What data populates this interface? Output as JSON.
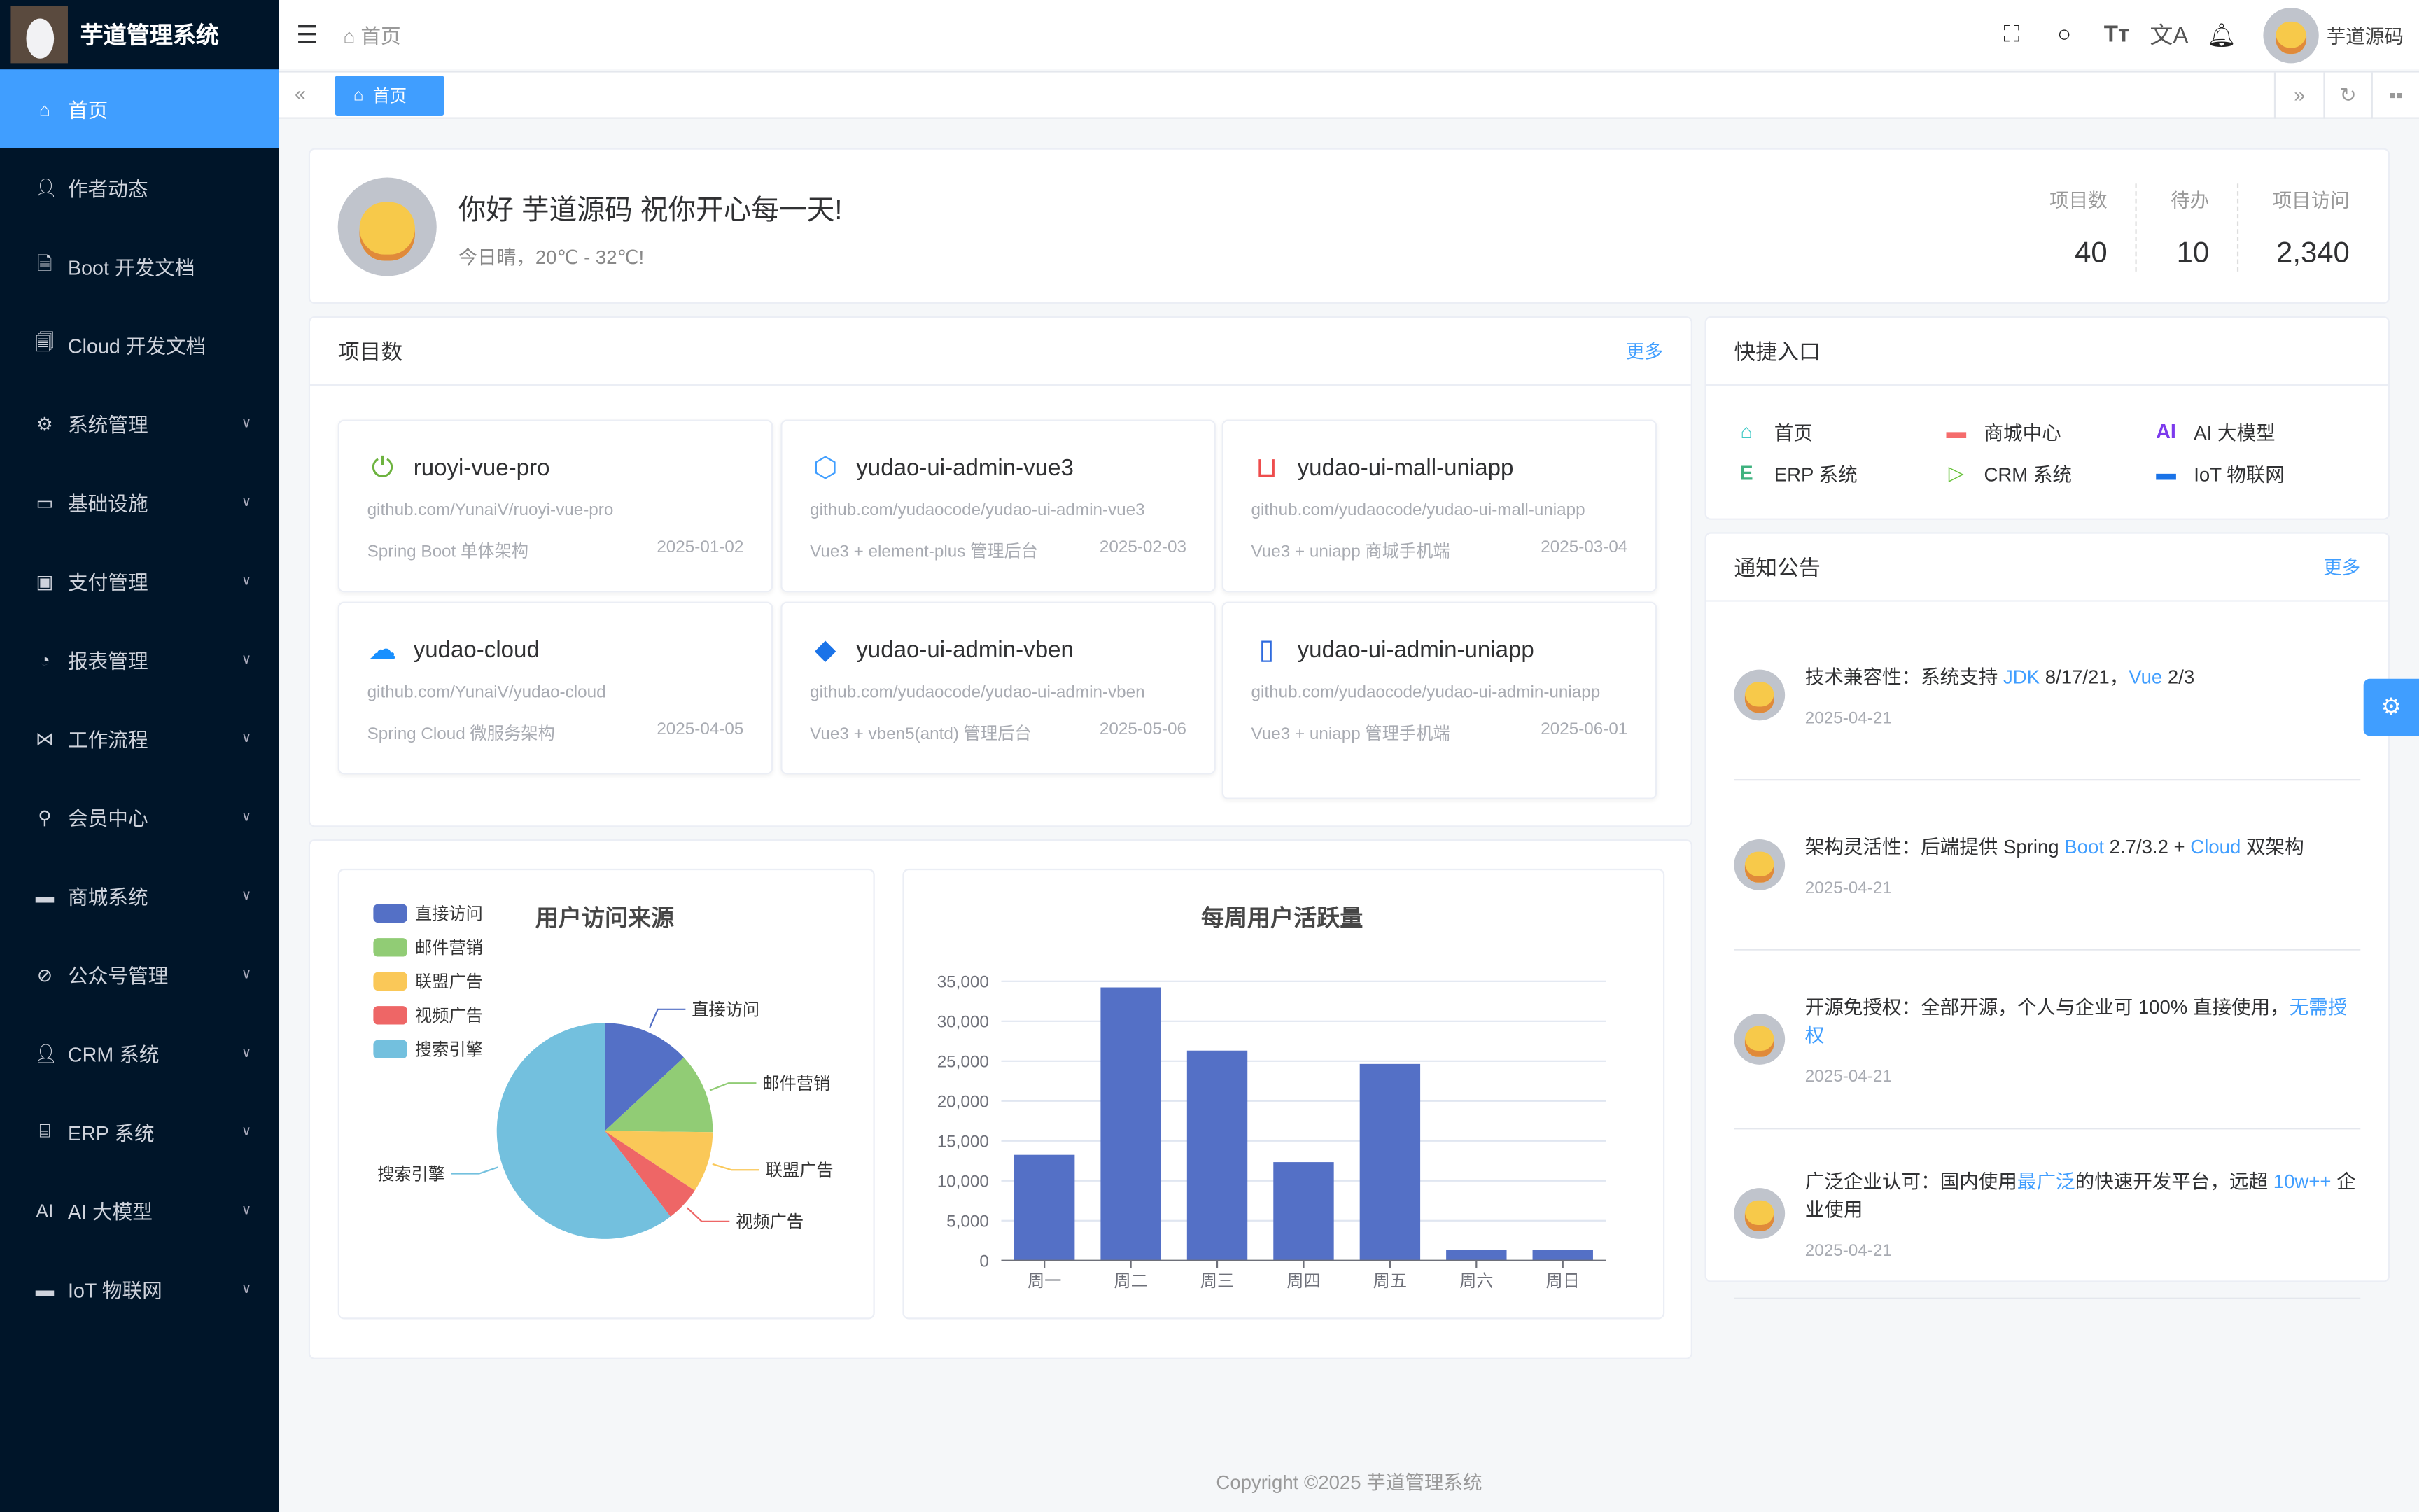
{
  "app": {
    "title": "芋道管理系统"
  },
  "sidebar": {
    "items": [
      {
        "label": "首页",
        "icon": "home-icon",
        "active": true
      },
      {
        "label": "作者动态",
        "icon": "user-icon"
      },
      {
        "label": "Boot 开发文档",
        "icon": "document-icon"
      },
      {
        "label": "Cloud 开发文档",
        "icon": "documents-icon"
      },
      {
        "label": "系统管理",
        "icon": "gear-icon",
        "sub": true
      },
      {
        "label": "基础设施",
        "icon": "monitor-icon",
        "sub": true
      },
      {
        "label": "支付管理",
        "icon": "wallet-icon",
        "sub": true
      },
      {
        "label": "报表管理",
        "icon": "pie-chart-icon",
        "sub": true
      },
      {
        "label": "工作流程",
        "icon": "flow-icon",
        "sub": true
      },
      {
        "label": "会员中心",
        "icon": "bicycle-icon",
        "sub": true
      },
      {
        "label": "商城系统",
        "icon": "shop-icon",
        "sub": true
      },
      {
        "label": "公众号管理",
        "icon": "compass-icon",
        "sub": true
      },
      {
        "label": "CRM 系统",
        "icon": "user-icon",
        "sub": true
      },
      {
        "label": "ERP 系统",
        "icon": "store-icon",
        "sub": true
      },
      {
        "label": "AI 大模型",
        "icon": "ai-icon",
        "sub": true
      },
      {
        "label": "IoT 物联网",
        "icon": "device-icon",
        "sub": true
      }
    ]
  },
  "header": {
    "breadcrumb": "首页",
    "username": "芋道源码"
  },
  "tags": {
    "active": "首页"
  },
  "welcome": {
    "greeting": "你好 芋道源码 祝你开心每一天!",
    "weather": "今日晴，20℃ - 32℃!",
    "stats": [
      {
        "label": "项目数",
        "value": "40"
      },
      {
        "label": "待办",
        "value": "10"
      },
      {
        "label": "项目访问",
        "value": "2,340"
      }
    ]
  },
  "projects": {
    "title": "项目数",
    "more": "更多",
    "items": [
      {
        "name": "ruoyi-vue-pro",
        "url": "github.com/YunaiV/ruoyi-vue-pro",
        "desc": "Spring Boot 单体架构",
        "date": "2025-01-02",
        "icon": "spring-power-icon",
        "color": "#6db33f"
      },
      {
        "name": "yudao-ui-admin-vue3",
        "url": "github.com/yudaocode/yudao-ui-admin-vue3",
        "desc": "Vue3 + element-plus 管理后台",
        "date": "2025-02-03",
        "icon": "element-plus-icon",
        "color": "#409eff"
      },
      {
        "name": "yudao-ui-mall-uniapp",
        "url": "github.com/yudaocode/yudao-ui-mall-uniapp",
        "desc": "Vue3 + uniapp 商城手机端",
        "date": "2025-03-04",
        "icon": "shopping-bag-icon",
        "color": "#ee4d4d"
      },
      {
        "name": "yudao-cloud",
        "url": "github.com/YunaiV/yudao-cloud",
        "desc": "Spring Cloud 微服务架构",
        "date": "2025-04-05",
        "icon": "cloud-icon",
        "color": "#1890ff"
      },
      {
        "name": "yudao-ui-admin-vben",
        "url": "github.com/yudaocode/yudao-ui-admin-vben",
        "desc": "Vue3 + vben5(antd) 管理后台",
        "date": "2025-05-06",
        "icon": "vben-diamond-icon",
        "color": "#1a73e8"
      },
      {
        "name": "yudao-ui-admin-uniapp",
        "url": "github.com/yudaocode/yudao-ui-admin-uniapp",
        "desc": "Vue3 + uniapp 管理手机端",
        "date": "2025-06-01",
        "icon": "mobile-icon",
        "color": "#2f6bde"
      }
    ]
  },
  "quick": {
    "title": "快捷入口",
    "items": [
      {
        "label": "首页",
        "icon": "home-icon",
        "color": "#40c9c6"
      },
      {
        "label": "商城中心",
        "icon": "shop-icon",
        "color": "#f56c6c"
      },
      {
        "label": "AI 大模型",
        "icon": "ai-icon",
        "color": "#7c3aed"
      },
      {
        "label": "ERP 系统",
        "icon": "erp-icon",
        "color": "#3fb27f"
      },
      {
        "label": "CRM 系统",
        "icon": "crm-icon",
        "color": "#67c23a"
      },
      {
        "label": "IoT 物联网",
        "icon": "iot-icon",
        "color": "#1a73e8"
      }
    ]
  },
  "notices": {
    "title": "通知公告",
    "more": "更多",
    "items": [
      {
        "parts": [
          {
            "t": "技术兼容性：系统支持 "
          },
          {
            "t": "JDK",
            "hl": true
          },
          {
            "t": " 8/17/21，"
          },
          {
            "t": "Vue",
            "hl": true
          },
          {
            "t": " 2/3"
          }
        ],
        "date": "2025-04-21"
      },
      {
        "parts": [
          {
            "t": "架构灵活性：后端提供 Spring "
          },
          {
            "t": "Boot",
            "hl": true
          },
          {
            "t": " 2.7/3.2 + "
          },
          {
            "t": "Cloud",
            "hl": true
          },
          {
            "t": " 双架构"
          }
        ],
        "date": "2025-04-21"
      },
      {
        "parts": [
          {
            "t": "开源免授权：全部开源，个人与企业可 100% 直接使用，"
          },
          {
            "t": "无需授权",
            "hl": true
          }
        ],
        "date": "2025-04-21"
      },
      {
        "parts": [
          {
            "t": "广泛企业认可：国内使用"
          },
          {
            "t": "最广泛",
            "hl": true
          },
          {
            "t": "的快速开发平台，远超 "
          },
          {
            "t": "10w++",
            "hl": true
          },
          {
            "t": " 企业使用"
          }
        ],
        "date": "2025-04-21"
      }
    ]
  },
  "chart_data": [
    {
      "type": "pie",
      "title": "用户访问来源",
      "legend_position": "top-left",
      "categories": [
        "直接访问",
        "邮件营销",
        "联盟广告",
        "视频广告",
        "搜索引擎"
      ],
      "values": [
        335,
        310,
        234,
        135,
        1548
      ],
      "colors": [
        "#5470c6",
        "#91cc75",
        "#fac858",
        "#ee6666",
        "#73c0de"
      ]
    },
    {
      "type": "bar",
      "title": "每周用户活跃量",
      "categories": [
        "周一",
        "周二",
        "周三",
        "周四",
        "周五",
        "周六",
        "周日"
      ],
      "values": [
        13253,
        34235,
        26321,
        12340,
        24643,
        1322,
        1324
      ],
      "ylim": [
        0,
        35000
      ],
      "yticks": [
        "0",
        "5,000",
        "10,000",
        "15,000",
        "20,000",
        "25,000",
        "30,000",
        "35,000"
      ],
      "color": "#5470c6",
      "grid": true
    }
  ],
  "footer": {
    "copyright": "Copyright ©2025 芋道管理系统"
  }
}
